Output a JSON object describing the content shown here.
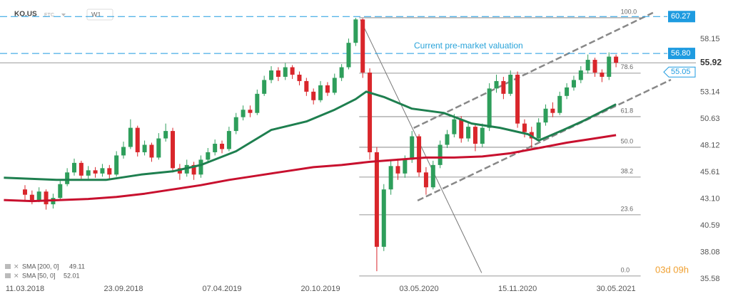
{
  "chart_data": {
    "type": "candlestick",
    "symbol": "KO.US",
    "market": "ETC",
    "timeframe": "W1",
    "annotation": "Current pre-market valuation",
    "countdown": "03d 09h",
    "up_color": "#2e9e5b",
    "down_color": "#d9262b",
    "xlim": [
      -7.1,
      190.7
    ],
    "xticks": [
      {
        "value": 0,
        "label": "11.03.2018"
      },
      {
        "value": 28,
        "label": "23.09.2018"
      },
      {
        "value": 56,
        "label": "07.04.2019"
      },
      {
        "value": 84,
        "label": "20.10.2019"
      },
      {
        "value": 112,
        "label": "03.05.2020"
      },
      {
        "value": 140,
        "label": "15.11.2020"
      },
      {
        "value": 168,
        "label": "30.05.2021"
      }
    ],
    "ylim": [
      35.24,
      61.83
    ],
    "yticks": [
      58.15,
      53.14,
      50.63,
      48.12,
      45.61,
      {
        "value": 43.1,
        "label": "43.10"
      },
      40.59,
      38.08,
      35.58
    ],
    "grid": false,
    "x": [
      0,
      2,
      4,
      6,
      8,
      10,
      12,
      14,
      16,
      18,
      20,
      22,
      24,
      26,
      28,
      30,
      32,
      34,
      36,
      38,
      40,
      42,
      44,
      46,
      48,
      50,
      52,
      54,
      56,
      58,
      60,
      62,
      64,
      66,
      68,
      70,
      72,
      74,
      76,
      78,
      80,
      82,
      84,
      86,
      88,
      90,
      92,
      94,
      96,
      98,
      100,
      102,
      104,
      106,
      108,
      110,
      112,
      114,
      116,
      118,
      120,
      122,
      124,
      126,
      128,
      130,
      132,
      134,
      136,
      138,
      140,
      142,
      144,
      146,
      148,
      150,
      152,
      154,
      156,
      158,
      160,
      162,
      164,
      166,
      168
    ],
    "ohlc": [
      [
        44.0,
        44.4,
        43.0,
        43.5
      ],
      [
        43.5,
        43.9,
        42.6,
        43.0
      ],
      [
        43.0,
        44.2,
        42.8,
        43.8
      ],
      [
        43.8,
        44.0,
        42.1,
        42.6
      ],
      [
        42.6,
        43.6,
        42.2,
        43.2
      ],
      [
        43.2,
        44.8,
        43.0,
        44.5
      ],
      [
        44.5,
        46.0,
        44.3,
        45.6
      ],
      [
        45.6,
        46.9,
        45.3,
        46.5
      ],
      [
        46.5,
        46.7,
        45.0,
        45.3
      ],
      [
        45.3,
        46.2,
        45.0,
        45.8
      ],
      [
        45.8,
        46.1,
        45.1,
        45.5
      ],
      [
        45.5,
        46.4,
        45.2,
        46.0
      ],
      [
        46.0,
        46.3,
        45.0,
        45.4
      ],
      [
        45.4,
        47.6,
        45.2,
        47.2
      ],
      [
        47.2,
        48.5,
        46.9,
        48.0
      ],
      [
        48.0,
        50.6,
        47.8,
        49.8
      ],
      [
        49.8,
        50.0,
        47.1,
        47.5
      ],
      [
        47.5,
        48.6,
        47.2,
        48.2
      ],
      [
        48.2,
        48.4,
        46.6,
        47.0
      ],
      [
        47.0,
        49.3,
        46.8,
        48.8
      ],
      [
        48.8,
        50.2,
        48.5,
        49.5
      ],
      [
        49.5,
        49.8,
        45.6,
        46.0
      ],
      [
        46.0,
        46.4,
        44.9,
        45.5
      ],
      [
        45.5,
        46.8,
        45.2,
        46.3
      ],
      [
        46.3,
        46.6,
        44.9,
        45.4
      ],
      [
        45.4,
        47.2,
        45.1,
        46.8
      ],
      [
        46.8,
        47.9,
        46.5,
        47.5
      ],
      [
        47.5,
        48.7,
        47.2,
        48.3
      ],
      [
        48.3,
        48.6,
        47.4,
        47.8
      ],
      [
        47.8,
        49.9,
        47.6,
        49.5
      ],
      [
        49.5,
        51.2,
        49.2,
        50.8
      ],
      [
        50.8,
        51.9,
        50.5,
        51.5
      ],
      [
        51.5,
        51.9,
        50.8,
        51.2
      ],
      [
        51.2,
        53.4,
        51.0,
        53.0
      ],
      [
        53.0,
        54.7,
        52.8,
        54.3
      ],
      [
        54.3,
        55.6,
        54.0,
        55.2
      ],
      [
        55.2,
        55.5,
        54.2,
        54.6
      ],
      [
        54.6,
        55.9,
        54.3,
        55.5
      ],
      [
        55.5,
        55.7,
        54.4,
        54.8
      ],
      [
        54.8,
        55.1,
        53.8,
        54.2
      ],
      [
        54.2,
        54.5,
        52.8,
        53.2
      ],
      [
        53.2,
        53.5,
        52.0,
        52.4
      ],
      [
        52.4,
        54.2,
        52.2,
        53.8
      ],
      [
        53.8,
        54.1,
        52.8,
        53.1
      ],
      [
        53.1,
        54.9,
        52.9,
        54.5
      ],
      [
        54.5,
        55.8,
        54.2,
        55.5
      ],
      [
        55.5,
        58.2,
        55.3,
        57.8
      ],
      [
        57.8,
        60.15,
        57.5,
        60.0
      ],
      [
        60.0,
        60.1,
        54.5,
        55.0
      ],
      [
        55.0,
        55.4,
        46.8,
        47.5
      ],
      [
        47.5,
        48.0,
        36.3,
        38.6
      ],
      [
        38.6,
        44.5,
        38.2,
        44.0
      ],
      [
        44.0,
        46.8,
        43.5,
        46.2
      ],
      [
        46.2,
        46.9,
        44.9,
        45.5
      ],
      [
        45.5,
        47.2,
        45.1,
        46.8
      ],
      [
        46.8,
        49.5,
        46.5,
        49.0
      ],
      [
        49.0,
        49.2,
        45.2,
        45.6
      ],
      [
        45.6,
        46.1,
        43.5,
        44.2
      ],
      [
        44.2,
        46.7,
        44.0,
        46.3
      ],
      [
        46.3,
        48.6,
        46.0,
        48.2
      ],
      [
        48.2,
        49.6,
        47.9,
        49.2
      ],
      [
        49.2,
        51.1,
        48.9,
        50.6
      ],
      [
        50.6,
        50.9,
        48.4,
        48.8
      ],
      [
        48.8,
        50.3,
        48.5,
        49.9
      ],
      [
        49.9,
        50.2,
        47.6,
        48.3
      ],
      [
        48.3,
        50.2,
        48.0,
        49.8
      ],
      [
        49.8,
        54.0,
        49.5,
        53.5
      ],
      [
        53.5,
        54.8,
        53.1,
        54.2
      ],
      [
        54.2,
        54.6,
        52.5,
        53.0
      ],
      [
        53.0,
        55.2,
        52.8,
        54.8
      ],
      [
        54.8,
        55.1,
        49.8,
        50.2
      ],
      [
        50.2,
        50.6,
        48.9,
        49.4
      ],
      [
        49.4,
        49.9,
        47.9,
        48.8
      ],
      [
        48.8,
        50.7,
        48.5,
        50.3
      ],
      [
        50.3,
        52.0,
        50.0,
        51.6
      ],
      [
        51.6,
        52.2,
        50.8,
        51.2
      ],
      [
        51.2,
        53.2,
        51.0,
        52.8
      ],
      [
        52.8,
        54.0,
        52.5,
        53.6
      ],
      [
        53.6,
        54.7,
        53.3,
        54.3
      ],
      [
        54.3,
        55.6,
        54.0,
        55.2
      ],
      [
        55.2,
        56.7,
        54.9,
        56.2
      ],
      [
        56.2,
        56.4,
        54.6,
        55.0
      ],
      [
        55.0,
        55.3,
        54.1,
        54.6
      ],
      [
        54.6,
        56.9,
        54.3,
        56.5
      ],
      [
        56.5,
        56.7,
        55.5,
        55.92
      ]
    ],
    "sma": [
      {
        "name": "SMA [200,  0]",
        "color": "#c8102e",
        "x": [
          -6,
          2,
          10,
          18,
          26,
          34,
          42,
          50,
          58,
          66,
          74,
          82,
          90,
          98,
          106,
          114,
          122,
          130,
          138,
          146,
          154,
          162,
          168
        ],
        "values": [
          43.0,
          42.9,
          43.0,
          43.1,
          43.3,
          43.6,
          44.0,
          44.4,
          44.9,
          45.3,
          45.7,
          46.1,
          46.3,
          46.6,
          46.8,
          47.0,
          47.0,
          47.1,
          47.4,
          47.9,
          48.4,
          48.8,
          49.11
        ]
      },
      {
        "name": "SMA [50,  0]",
        "color": "#1e7f4f",
        "x": [
          -6,
          9,
          23,
          33,
          42,
          50,
          60,
          70,
          80,
          88,
          94,
          97,
          102,
          110,
          119,
          127,
          135,
          143,
          146,
          153,
          159,
          168
        ],
        "values": [
          45.1,
          44.9,
          44.9,
          45.4,
          45.7,
          46.3,
          47.6,
          49.6,
          50.4,
          51.5,
          52.5,
          53.2,
          52.7,
          51.6,
          51.2,
          50.2,
          49.8,
          49.2,
          48.6,
          49.6,
          50.5,
          52.01
        ]
      }
    ],
    "fib_range": [
      95,
      175
    ],
    "fib_levels": [
      {
        "value": 35.85,
        "label": "0.0"
      },
      {
        "value": 41.61,
        "label": "23.6"
      },
      {
        "value": 45.16,
        "label": "38.2"
      },
      {
        "value": 47.97,
        "label": "50.0"
      },
      {
        "value": 50.85,
        "label": "61.8"
      },
      {
        "value": 54.94,
        "label": "78.6"
      },
      {
        "value": 60.16,
        "label": "100.0"
      }
    ],
    "trendlines": [
      {
        "style": "solid",
        "points": [
          [
            95.3,
            60.0
          ],
          [
            129.8,
            36.15
          ]
        ]
      },
      {
        "style": "dashed",
        "points": [
          [
            110.5,
            49.78
          ],
          [
            178.5,
            60.63
          ]
        ]
      },
      {
        "style": "dashed",
        "points": [
          [
            111.6,
            42.95
          ],
          [
            183.6,
            54.33
          ]
        ]
      }
    ],
    "price_lines": [
      {
        "value": 60.27,
        "color": "#1e9be0",
        "style": "dashed"
      },
      {
        "value": {
          "value": 56.8,
          "label": "56.80"
        },
        "color": "#1e9be0",
        "style": "dashed"
      },
      {
        "value": 55.05,
        "color": "#1e9be0",
        "style": "marker"
      }
    ]
  }
}
